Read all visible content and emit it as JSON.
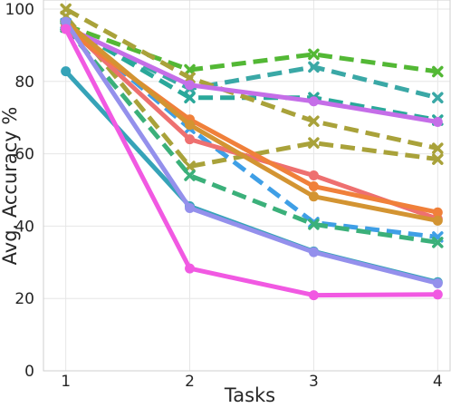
{
  "chart_data": {
    "type": "line",
    "xlabel": "Tasks",
    "ylabel": "Avg. Accuracy %",
    "x": [
      1,
      2,
      3,
      4
    ],
    "xticks": [
      "1",
      "2",
      "3",
      "4"
    ],
    "yticks": [
      "0",
      "20",
      "40",
      "60",
      "80",
      "100"
    ],
    "ylim": [
      0,
      100
    ],
    "xlim": [
      0.82,
      4.1
    ],
    "grid": true,
    "legend": "none",
    "series": [
      {
        "color": "#53b835",
        "dash": true,
        "marker": "x",
        "values": [
          95.5,
          83.2,
          87.5,
          82.7
        ]
      },
      {
        "color": "#3aa8a6",
        "dash": true,
        "marker": "x",
        "values": [
          95.0,
          78.0,
          84.0,
          75.5
        ]
      },
      {
        "color": "#2aa89a",
        "dash": true,
        "marker": "x",
        "values": [
          95.5,
          75.5,
          75.5,
          69.3
        ]
      },
      {
        "color": "#a9a23a",
        "dash": true,
        "marker": "x",
        "values": [
          100.0,
          81.0,
          69.0,
          61.5
        ]
      },
      {
        "color": "#a9a23a",
        "dash": true,
        "marker": "x",
        "values": [
          98.0,
          56.5,
          63.0,
          58.5
        ]
      },
      {
        "color": "#3f9fe6",
        "dash": true,
        "marker": "x",
        "values": [
          96.0,
          67.0,
          41.0,
          37.0
        ]
      },
      {
        "color": "#3bb07a",
        "dash": true,
        "marker": "x",
        "values": [
          95.0,
          54.0,
          40.5,
          35.5
        ]
      },
      {
        "color": "#c56ee8",
        "dash": false,
        "marker": "o",
        "values": [
          95.0,
          79.0,
          74.5,
          68.8
        ]
      },
      {
        "color": "#ee7070",
        "dash": false,
        "marker": "o",
        "values": [
          95.5,
          64.0,
          54.0,
          42.0
        ]
      },
      {
        "color": "#f0803a",
        "dash": false,
        "marker": "o",
        "values": [
          94.5,
          69.5,
          51.0,
          43.8
        ]
      },
      {
        "color": "#d39432",
        "dash": false,
        "marker": "o",
        "values": [
          96.5,
          68.0,
          48.2,
          41.5
        ]
      },
      {
        "color": "#36a3b8",
        "dash": false,
        "marker": "o",
        "values": [
          82.8,
          45.5,
          33.0,
          24.5
        ]
      },
      {
        "color": "#9490ec",
        "dash": false,
        "marker": "o",
        "values": [
          96.5,
          45.0,
          32.8,
          24.2
        ]
      },
      {
        "color": "#f159e2",
        "dash": false,
        "marker": "o",
        "values": [
          94.5,
          28.3,
          20.9,
          21.1
        ]
      }
    ]
  }
}
